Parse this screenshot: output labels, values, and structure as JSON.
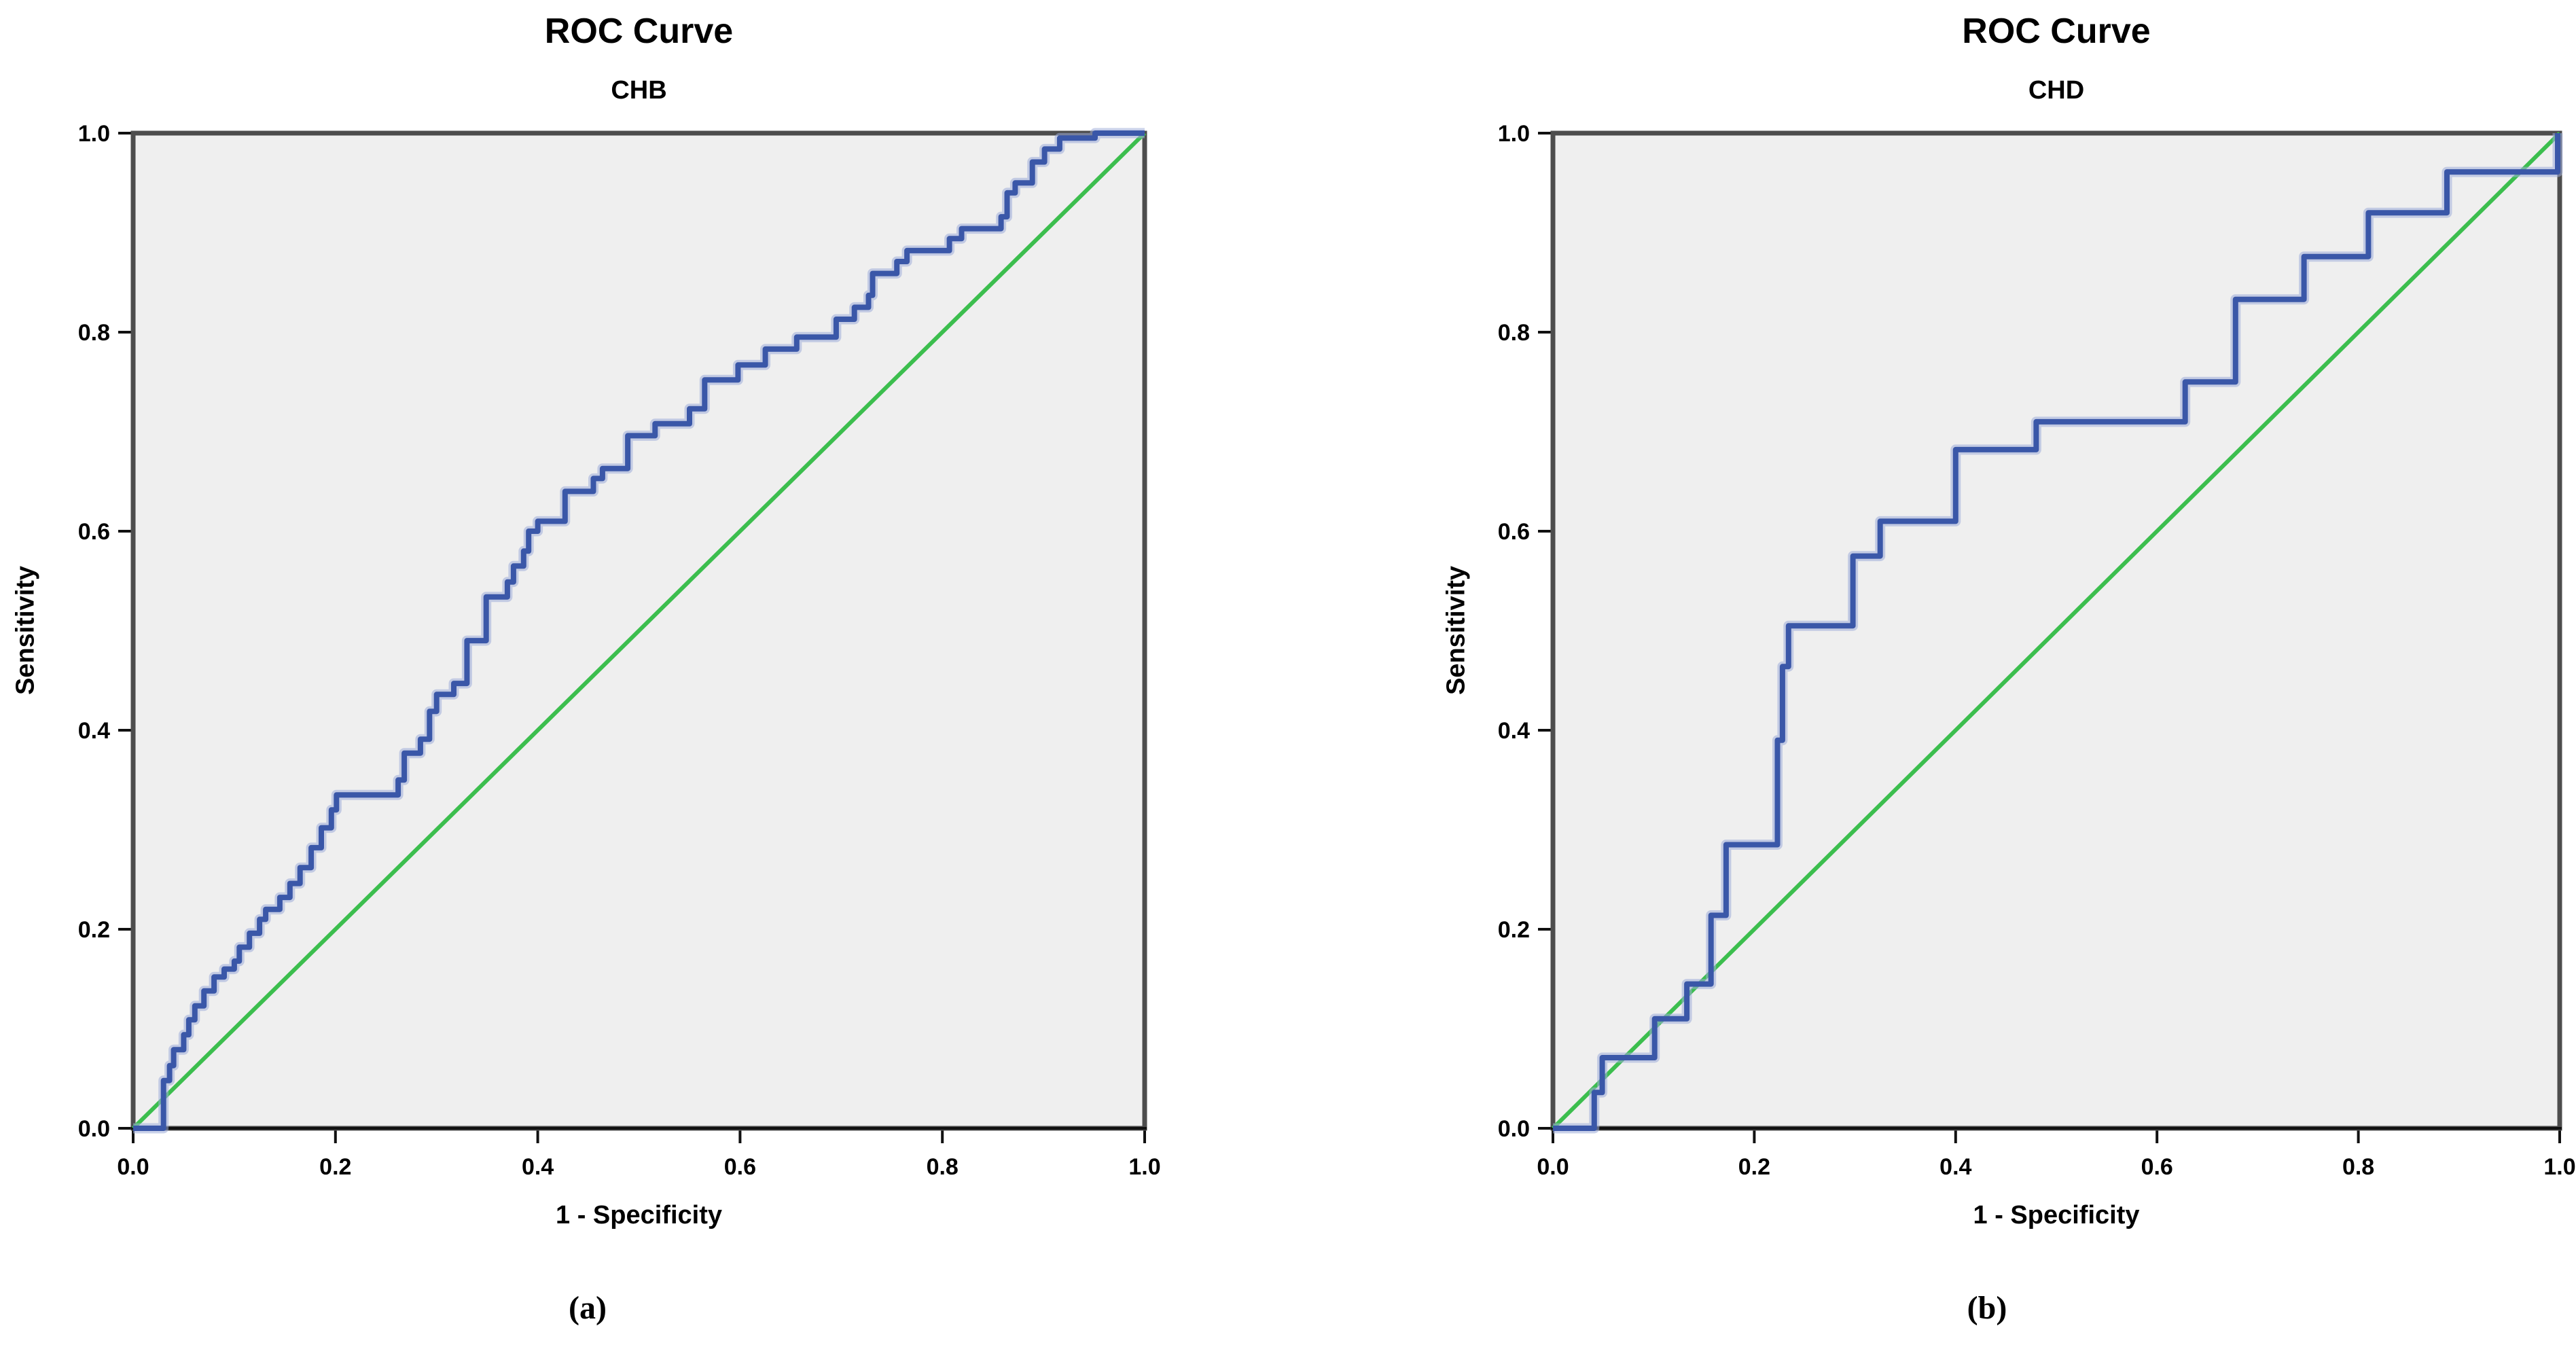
{
  "figure": {
    "panels": [
      {
        "caption": "(a)"
      },
      {
        "caption": "(b)"
      }
    ]
  },
  "chart_data": [
    {
      "type": "line",
      "title": "ROC Curve",
      "subtitle": "CHB",
      "xlabel": "1 - Specificity",
      "ylabel": "Sensitivity",
      "xlim": [
        0,
        1
      ],
      "ylim": [
        0,
        1
      ],
      "x_tick_labels": [
        "0.0",
        "0.2",
        "0.4",
        "0.6",
        "0.8",
        "1.0"
      ],
      "y_tick_labels": [
        "0.0",
        "0.2",
        "0.4",
        "0.6",
        "0.8",
        "1.0"
      ],
      "grid": false,
      "legend_position": "none",
      "plot_bg": "#efefef",
      "frame_color": "#4d4d4d",
      "axis_color": "#111111",
      "series": [
        {
          "name": "Reference line",
          "color": "#3cbe4e",
          "halo": null,
          "points": [
            [
              0,
              0
            ],
            [
              1,
              1
            ]
          ]
        },
        {
          "name": "ROC curve",
          "color": "#3a57a8",
          "halo": "#9dacd9",
          "points": [
            [
              0,
              0
            ],
            [
              0.03,
              0
            ],
            [
              0.03,
              0.048
            ],
            [
              0.036,
              0.048
            ],
            [
              0.036,
              0.063
            ],
            [
              0.04,
              0.063
            ],
            [
              0.04,
              0.079
            ],
            [
              0.05,
              0.079
            ],
            [
              0.05,
              0.094
            ],
            [
              0.055,
              0.094
            ],
            [
              0.055,
              0.109
            ],
            [
              0.061,
              0.109
            ],
            [
              0.061,
              0.123
            ],
            [
              0.07,
              0.123
            ],
            [
              0.07,
              0.138
            ],
            [
              0.08,
              0.138
            ],
            [
              0.08,
              0.152
            ],
            [
              0.09,
              0.152
            ],
            [
              0.09,
              0.16
            ],
            [
              0.1,
              0.16
            ],
            [
              0.1,
              0.168
            ],
            [
              0.105,
              0.168
            ],
            [
              0.105,
              0.182
            ],
            [
              0.115,
              0.182
            ],
            [
              0.115,
              0.196
            ],
            [
              0.125,
              0.196
            ],
            [
              0.125,
              0.21
            ],
            [
              0.131,
              0.21
            ],
            [
              0.131,
              0.22
            ],
            [
              0.145,
              0.22
            ],
            [
              0.145,
              0.232
            ],
            [
              0.155,
              0.232
            ],
            [
              0.155,
              0.246
            ],
            [
              0.165,
              0.246
            ],
            [
              0.165,
              0.262
            ],
            [
              0.176,
              0.262
            ],
            [
              0.176,
              0.282
            ],
            [
              0.186,
              0.282
            ],
            [
              0.186,
              0.302
            ],
            [
              0.196,
              0.302
            ],
            [
              0.196,
              0.32
            ],
            [
              0.201,
              0.32
            ],
            [
              0.201,
              0.335
            ],
            [
              0.262,
              0.335
            ],
            [
              0.262,
              0.35
            ],
            [
              0.268,
              0.35
            ],
            [
              0.268,
              0.377
            ],
            [
              0.284,
              0.377
            ],
            [
              0.284,
              0.391
            ],
            [
              0.293,
              0.391
            ],
            [
              0.293,
              0.419
            ],
            [
              0.3,
              0.419
            ],
            [
              0.3,
              0.436
            ],
            [
              0.317,
              0.436
            ],
            [
              0.317,
              0.447
            ],
            [
              0.33,
              0.447
            ],
            [
              0.33,
              0.49
            ],
            [
              0.349,
              0.49
            ],
            [
              0.349,
              0.534
            ],
            [
              0.37,
              0.534
            ],
            [
              0.37,
              0.549
            ],
            [
              0.376,
              0.549
            ],
            [
              0.376,
              0.565
            ],
            [
              0.386,
              0.565
            ],
            [
              0.386,
              0.58
            ],
            [
              0.391,
              0.58
            ],
            [
              0.391,
              0.6
            ],
            [
              0.4,
              0.6
            ],
            [
              0.4,
              0.61
            ],
            [
              0.427,
              0.61
            ],
            [
              0.427,
              0.64
            ],
            [
              0.455,
              0.64
            ],
            [
              0.455,
              0.653
            ],
            [
              0.464,
              0.653
            ],
            [
              0.464,
              0.663
            ],
            [
              0.489,
              0.663
            ],
            [
              0.489,
              0.696
            ],
            [
              0.516,
              0.696
            ],
            [
              0.516,
              0.708
            ],
            [
              0.55,
              0.708
            ],
            [
              0.55,
              0.723
            ],
            [
              0.565,
              0.723
            ],
            [
              0.565,
              0.752
            ],
            [
              0.598,
              0.752
            ],
            [
              0.598,
              0.767
            ],
            [
              0.625,
              0.767
            ],
            [
              0.625,
              0.783
            ],
            [
              0.656,
              0.783
            ],
            [
              0.656,
              0.795
            ],
            [
              0.695,
              0.795
            ],
            [
              0.695,
              0.813
            ],
            [
              0.713,
              0.813
            ],
            [
              0.713,
              0.825
            ],
            [
              0.727,
              0.825
            ],
            [
              0.727,
              0.837
            ],
            [
              0.731,
              0.837
            ],
            [
              0.731,
              0.859
            ],
            [
              0.755,
              0.859
            ],
            [
              0.755,
              0.871
            ],
            [
              0.765,
              0.871
            ],
            [
              0.765,
              0.882
            ],
            [
              0.807,
              0.882
            ],
            [
              0.807,
              0.894
            ],
            [
              0.819,
              0.894
            ],
            [
              0.819,
              0.904
            ],
            [
              0.858,
              0.904
            ],
            [
              0.858,
              0.916
            ],
            [
              0.864,
              0.916
            ],
            [
              0.864,
              0.94
            ],
            [
              0.872,
              0.94
            ],
            [
              0.872,
              0.95
            ],
            [
              0.889,
              0.95
            ],
            [
              0.889,
              0.971
            ],
            [
              0.901,
              0.971
            ],
            [
              0.901,
              0.984
            ],
            [
              0.916,
              0.984
            ],
            [
              0.916,
              0.995
            ],
            [
              0.951,
              0.995
            ],
            [
              0.951,
              1
            ],
            [
              1,
              1
            ]
          ]
        }
      ]
    },
    {
      "type": "line",
      "title": "ROC Curve",
      "subtitle": "CHD",
      "xlabel": "1 - Specificity",
      "ylabel": "Sensitivity",
      "xlim": [
        0,
        1
      ],
      "ylim": [
        0,
        1
      ],
      "x_tick_labels": [
        "0.0",
        "0.2",
        "0.4",
        "0.6",
        "0.8",
        "1.0"
      ],
      "y_tick_labels": [
        "0.0",
        "0.2",
        "0.4",
        "0.6",
        "0.8",
        "1.0"
      ],
      "grid": false,
      "legend_position": "none",
      "plot_bg": "#efefef",
      "frame_color": "#4d4d4d",
      "axis_color": "#111111",
      "series": [
        {
          "name": "Reference line",
          "color": "#3cbe4e",
          "halo": null,
          "points": [
            [
              0,
              0
            ],
            [
              1,
              1
            ]
          ]
        },
        {
          "name": "ROC curve",
          "color": "#3a57a8",
          "halo": "#9dacd9",
          "points": [
            [
              0,
              0
            ],
            [
              0.041,
              0
            ],
            [
              0.041,
              0.036
            ],
            [
              0.049,
              0.036
            ],
            [
              0.049,
              0.071
            ],
            [
              0.101,
              0.071
            ],
            [
              0.101,
              0.11
            ],
            [
              0.133,
              0.11
            ],
            [
              0.133,
              0.145
            ],
            [
              0.157,
              0.145
            ],
            [
              0.157,
              0.214
            ],
            [
              0.172,
              0.214
            ],
            [
              0.172,
              0.285
            ],
            [
              0.223,
              0.285
            ],
            [
              0.223,
              0.39
            ],
            [
              0.228,
              0.39
            ],
            [
              0.228,
              0.464
            ],
            [
              0.234,
              0.464
            ],
            [
              0.234,
              0.505
            ],
            [
              0.298,
              0.505
            ],
            [
              0.298,
              0.575
            ],
            [
              0.325,
              0.575
            ],
            [
              0.325,
              0.61
            ],
            [
              0.4,
              0.61
            ],
            [
              0.4,
              0.682
            ],
            [
              0.48,
              0.682
            ],
            [
              0.48,
              0.71
            ],
            [
              0.628,
              0.71
            ],
            [
              0.628,
              0.75
            ],
            [
              0.678,
              0.75
            ],
            [
              0.678,
              0.833
            ],
            [
              0.746,
              0.833
            ],
            [
              0.746,
              0.876
            ],
            [
              0.81,
              0.876
            ],
            [
              0.81,
              0.92
            ],
            [
              0.888,
              0.92
            ],
            [
              0.888,
              0.961
            ],
            [
              0.998,
              0.961
            ],
            [
              0.998,
              1
            ]
          ]
        }
      ]
    }
  ]
}
